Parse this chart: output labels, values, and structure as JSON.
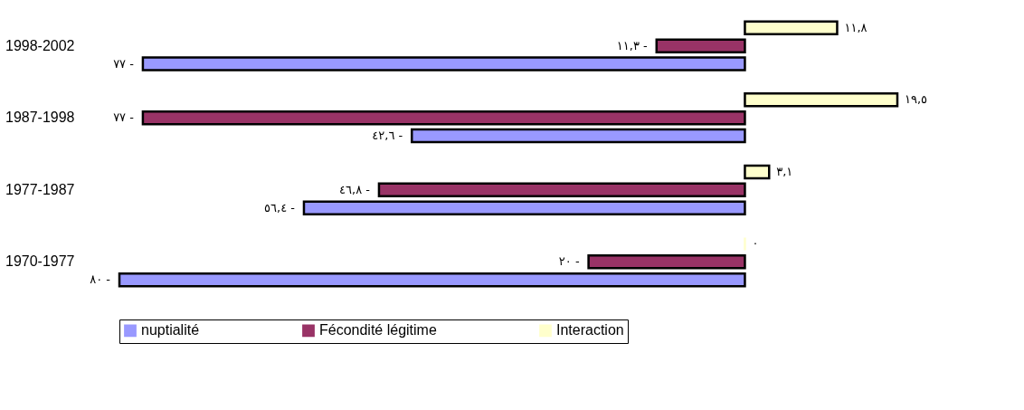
{
  "chart_data": {
    "type": "bar",
    "orientation": "horizontal",
    "categories": [
      "1998-2002",
      "1987-1998",
      "1977-1987",
      "1970-1977"
    ],
    "series": [
      {
        "name": "Interaction",
        "color": "#ffffcc",
        "values": [
          11.8,
          19.5,
          3.1,
          0
        ],
        "value_labels": [
          "١١,٨",
          "١٩,٥",
          "٣,١",
          "٠"
        ]
      },
      {
        "name": "Fécondité légitime",
        "color": "#993366",
        "values": [
          -11.3,
          -77,
          -46.8,
          -20
        ],
        "value_labels": [
          "- ١١,٣",
          "- ٧٧",
          "- ٤٦,٨",
          "- ٢٠"
        ]
      },
      {
        "name": "nuptialité",
        "color": "#9999ff",
        "values": [
          -77,
          -42.6,
          -56.4,
          -80
        ],
        "value_labels": [
          "- ٧٧",
          "- ٤٢,٦",
          "- ٥٦,٤",
          "- ٨٠"
        ]
      }
    ],
    "legend": "bottom",
    "grid": false,
    "tick_labels": "y"
  }
}
